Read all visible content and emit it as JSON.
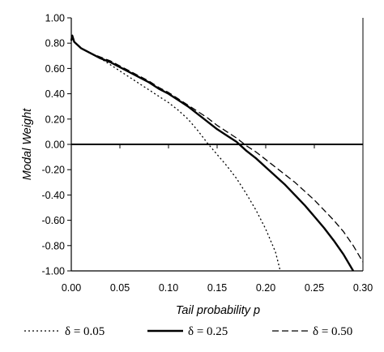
{
  "chart_data": {
    "type": "line",
    "xlabel": "Tail probability p",
    "ylabel": "Modal Weight",
    "xlim": [
      0.0,
      0.3
    ],
    "ylim": [
      -1.0,
      1.0
    ],
    "x_ticks": [
      "0.00",
      "0.05",
      "0.10",
      "0.15",
      "0.20",
      "0.25",
      "0.30"
    ],
    "y_ticks": [
      "1.00",
      "0.80",
      "0.60",
      "0.40",
      "0.20",
      "0.00",
      "-0.20",
      "-0.40",
      "-0.60",
      "-0.80",
      "-1.00"
    ],
    "grid": false,
    "legend_position": "bottom",
    "series": [
      {
        "name": "δ = 0.05",
        "style": "dotted",
        "x": [
          0.0,
          0.001,
          0.003,
          0.01,
          0.02,
          0.03,
          0.04,
          0.05,
          0.06,
          0.07,
          0.08,
          0.09,
          0.1,
          0.11,
          0.12,
          0.13,
          0.14,
          0.15,
          0.16,
          0.17,
          0.18,
          0.19,
          0.2,
          0.21,
          0.215
        ],
        "y": [
          0.82,
          0.87,
          0.81,
          0.76,
          0.72,
          0.68,
          0.63,
          0.58,
          0.53,
          0.48,
          0.43,
          0.38,
          0.33,
          0.27,
          0.2,
          0.11,
          0.01,
          -0.08,
          -0.17,
          -0.27,
          -0.39,
          -0.52,
          -0.67,
          -0.85,
          -1.0
        ]
      },
      {
        "name": "δ = 0.25",
        "style": "solid",
        "x": [
          0.0,
          0.001,
          0.003,
          0.01,
          0.02,
          0.03,
          0.04,
          0.05,
          0.06,
          0.07,
          0.08,
          0.09,
          0.1,
          0.11,
          0.12,
          0.13,
          0.14,
          0.15,
          0.16,
          0.17,
          0.18,
          0.19,
          0.2,
          0.21,
          0.22,
          0.23,
          0.24,
          0.25,
          0.26,
          0.27,
          0.28,
          0.29
        ],
        "y": [
          0.82,
          0.86,
          0.81,
          0.76,
          0.72,
          0.68,
          0.65,
          0.61,
          0.57,
          0.53,
          0.49,
          0.44,
          0.4,
          0.35,
          0.3,
          0.24,
          0.18,
          0.12,
          0.07,
          0.02,
          -0.05,
          -0.11,
          -0.18,
          -0.25,
          -0.32,
          -0.4,
          -0.48,
          -0.57,
          -0.66,
          -0.76,
          -0.87,
          -1.0
        ]
      },
      {
        "name": "δ = 0.50",
        "style": "dashed",
        "x": [
          0.0,
          0.001,
          0.003,
          0.01,
          0.02,
          0.03,
          0.04,
          0.05,
          0.06,
          0.07,
          0.08,
          0.09,
          0.1,
          0.11,
          0.12,
          0.13,
          0.14,
          0.15,
          0.16,
          0.17,
          0.18,
          0.19,
          0.2,
          0.21,
          0.22,
          0.23,
          0.24,
          0.25,
          0.26,
          0.27,
          0.28,
          0.29,
          0.3
        ],
        "y": [
          0.82,
          0.86,
          0.81,
          0.76,
          0.72,
          0.69,
          0.66,
          0.62,
          0.58,
          0.54,
          0.5,
          0.45,
          0.41,
          0.36,
          0.31,
          0.26,
          0.21,
          0.15,
          0.1,
          0.05,
          -0.01,
          -0.06,
          -0.12,
          -0.18,
          -0.24,
          -0.3,
          -0.37,
          -0.44,
          -0.52,
          -0.6,
          -0.69,
          -0.8,
          -0.93
        ]
      }
    ]
  }
}
